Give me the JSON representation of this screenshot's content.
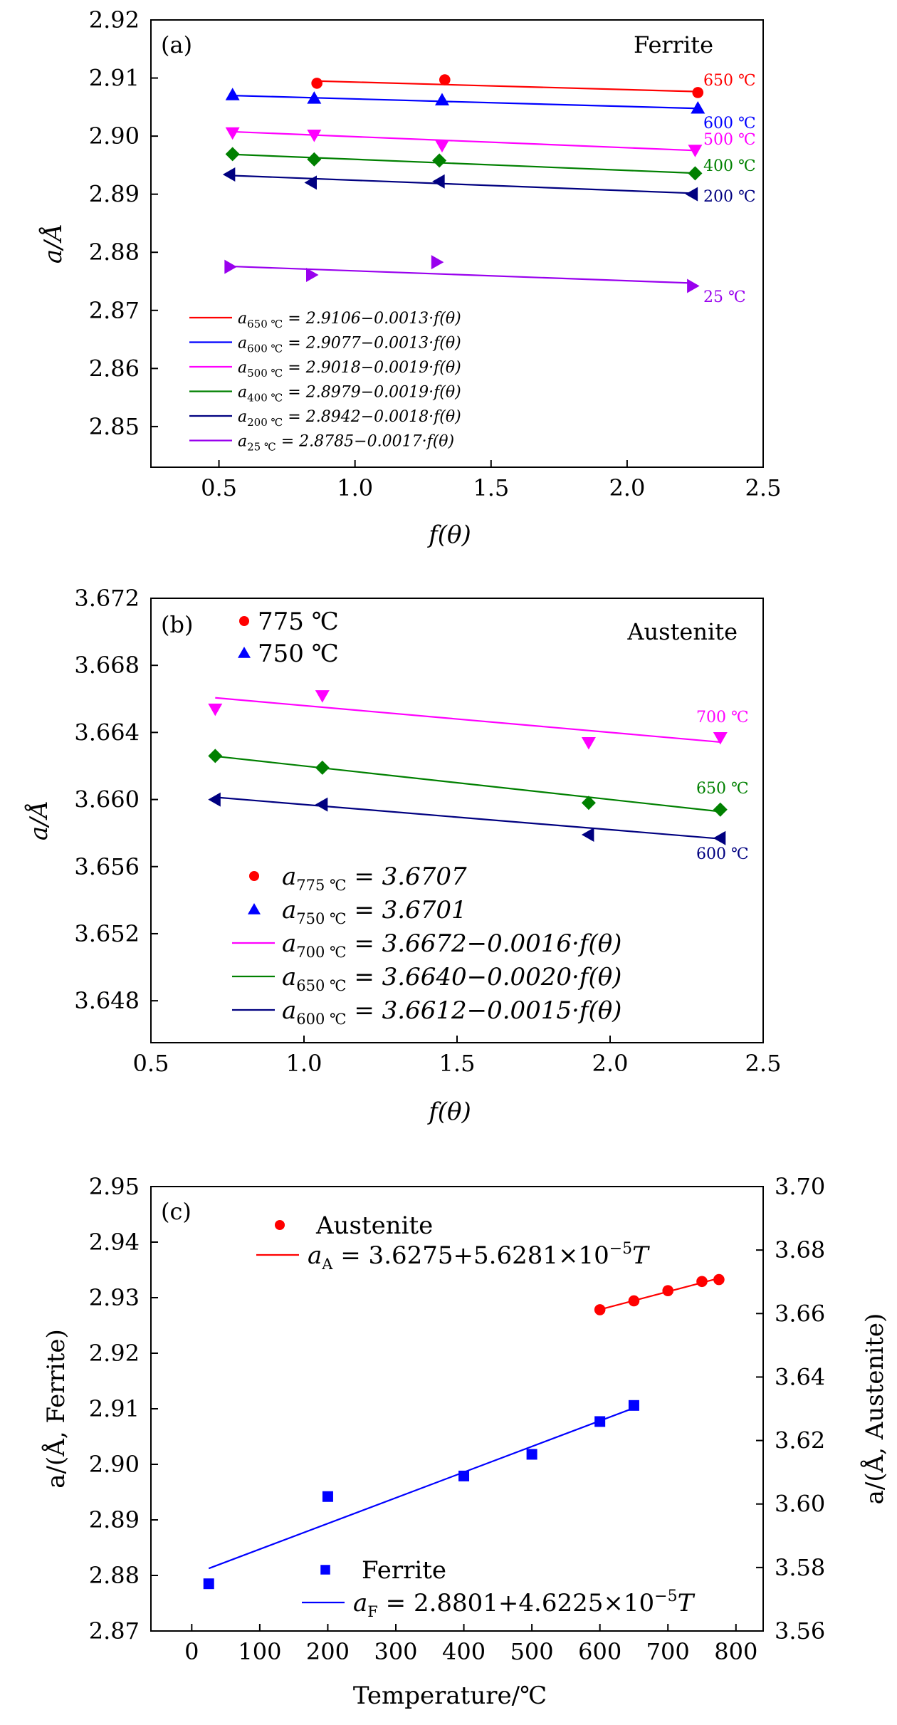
{
  "colors": {
    "red": "#ff0000",
    "blue": "#0000ff",
    "magenta": "#ff00ff",
    "green": "#008000",
    "navy": "#000080",
    "purple": "#9900ee"
  },
  "chart_data": [
    {
      "panel": "(a)",
      "type": "scatter",
      "annotation": "Ferrite",
      "xlabel": "f(θ)",
      "ylabel": "a/Å",
      "xlim": [
        0.25,
        2.5
      ],
      "ylim": [
        2.843,
        2.92
      ],
      "xticks": [
        "0.5",
        "1.0",
        "1.5",
        "2.0",
        "2.5"
      ],
      "yticks": [
        "2.85",
        "2.86",
        "2.87",
        "2.88",
        "2.89",
        "2.90",
        "2.91",
        "2.92"
      ],
      "series": [
        {
          "name": "650 ℃",
          "color": "#ff0000",
          "marker": "circle",
          "x": [
            0.86,
            1.33,
            2.26
          ],
          "y": [
            2.9091,
            2.9097,
            2.9075
          ],
          "fit": [
            2.9106,
            -0.0013
          ],
          "fit_x": [
            0.86,
            2.26
          ],
          "equation": "a650 ℃ = 2.9106−0.0013·f(θ)"
        },
        {
          "name": "600 ℃",
          "color": "#0000ff",
          "marker": "triangle-up",
          "x": [
            0.55,
            0.85,
            1.32,
            2.26
          ],
          "y": [
            2.9071,
            2.9065,
            2.9062,
            2.9048
          ],
          "fit": [
            2.9077,
            -0.0013
          ],
          "fit_x": [
            0.55,
            2.26
          ],
          "equation": "a600 ℃ = 2.9077−0.0013·f(θ)"
        },
        {
          "name": "500 ℃",
          "color": "#ff00ff",
          "marker": "triangle-down",
          "x": [
            0.55,
            0.85,
            1.32,
            2.25
          ],
          "y": [
            2.9006,
            2.9002,
            2.8984,
            2.8976
          ],
          "fit": [
            2.9018,
            -0.0019
          ],
          "fit_x": [
            0.55,
            2.25
          ],
          "equation": "a500 ℃ = 2.9018−0.0019·f(θ)"
        },
        {
          "name": "400 ℃",
          "color": "#008000",
          "marker": "diamond",
          "x": [
            0.55,
            0.85,
            1.31,
            2.25
          ],
          "y": [
            2.8969,
            2.896,
            2.8958,
            2.8936
          ],
          "fit": [
            2.8979,
            -0.0019
          ],
          "fit_x": [
            0.55,
            2.25
          ],
          "equation": "a400 ℃ = 2.8979−0.0019·f(θ)"
        },
        {
          "name": "200 ℃",
          "color": "#000080",
          "marker": "triangle-left",
          "x": [
            0.54,
            0.84,
            1.31,
            2.24
          ],
          "y": [
            2.8934,
            2.892,
            2.8922,
            2.89
          ],
          "fit": [
            2.8942,
            -0.0018
          ],
          "fit_x": [
            0.54,
            2.24
          ],
          "equation": "a200 ℃ = 2.8942−0.0018·f(θ)"
        },
        {
          "name": "25 ℃",
          "color": "#9900ee",
          "marker": "triangle-right",
          "x": [
            0.54,
            0.84,
            1.3,
            2.24
          ],
          "y": [
            2.8775,
            2.8761,
            2.8783,
            2.8742
          ],
          "fit": [
            2.8785,
            -0.0017
          ],
          "fit_x": [
            0.54,
            2.24
          ],
          "equation": "a25 ℃ = 2.8785−0.0017·f(θ)"
        }
      ],
      "legend": [
        {
          "sub": "650 ℃",
          "expr": "= 2.9106−0.0013·f(θ)",
          "color": "#ff0000"
        },
        {
          "sub": "600 ℃",
          "expr": "= 2.9077−0.0013·f(θ)",
          "color": "#0000ff"
        },
        {
          "sub": "500 ℃",
          "expr": "= 2.9018−0.0019·f(θ)",
          "color": "#ff00ff"
        },
        {
          "sub": "400 ℃",
          "expr": "= 2.8979−0.0019·f(θ)",
          "color": "#008000"
        },
        {
          "sub": "200 ℃",
          "expr": "= 2.8942−0.0018·f(θ)",
          "color": "#000080"
        },
        {
          "sub": "25 ℃",
          "expr": "= 2.8785−0.0017·f(θ)",
          "color": "#9900ee"
        }
      ]
    },
    {
      "panel": "(b)",
      "type": "scatter",
      "annotation": "Austenite",
      "xlabel": "f(θ)",
      "ylabel": "a/Å",
      "xlim": [
        0.5,
        2.5
      ],
      "ylim": [
        3.6455,
        3.672
      ],
      "xticks": [
        "0.5",
        "1.0",
        "1.5",
        "2.0",
        "2.5"
      ],
      "yticks": [
        "3.648",
        "3.652",
        "3.656",
        "3.660",
        "3.664",
        "3.668",
        "3.672"
      ],
      "series": [
        {
          "name": "700 ℃",
          "color": "#ff00ff",
          "marker": "triangle-down",
          "x": [
            0.71,
            1.06,
            1.93,
            2.36
          ],
          "y": [
            3.6654,
            3.6662,
            3.6634,
            3.6637
          ],
          "fit": [
            3.6672,
            -0.0016
          ],
          "fit_x": [
            0.71,
            2.36
          ],
          "equation": "a700 ℃ = 3.6672−0.0016·f(θ)"
        },
        {
          "name": "650 ℃",
          "color": "#008000",
          "marker": "diamond",
          "x": [
            0.71,
            1.06,
            1.93,
            2.36
          ],
          "y": [
            3.6626,
            3.6619,
            3.6598,
            3.6594
          ],
          "fit": [
            3.664,
            -0.002
          ],
          "fit_x": [
            0.71,
            2.36
          ],
          "equation": "a650 ℃ = 3.6640−0.0020·f(θ)"
        },
        {
          "name": "600 ℃",
          "color": "#000080",
          "marker": "triangle-left",
          "x": [
            0.71,
            1.06,
            1.93,
            2.36
          ],
          "y": [
            3.66,
            3.6597,
            3.6579,
            3.6577
          ],
          "fit": [
            3.6612,
            -0.0015
          ],
          "fit_x": [
            0.71,
            2.36
          ],
          "equation": "a600 ℃ = 3.6612−0.0015·f(θ)"
        }
      ],
      "top_legend": [
        {
          "label": "775 ℃",
          "color": "#ff0000",
          "marker": "circle"
        },
        {
          "label": "750 ℃",
          "color": "#0000ff",
          "marker": "triangle-up"
        }
      ],
      "legend": [
        {
          "kind": "marker",
          "marker": "circle",
          "color": "#ff0000",
          "sub": "775 ℃",
          "expr": "= 3.6707"
        },
        {
          "kind": "marker",
          "marker": "triangle-up",
          "color": "#0000ff",
          "sub": "750 ℃",
          "expr": "= 3.6701"
        },
        {
          "kind": "line",
          "color": "#ff00ff",
          "sub": "700 ℃",
          "expr": "= 3.6672−0.0016·f(θ)"
        },
        {
          "kind": "line",
          "color": "#008000",
          "sub": "650 ℃",
          "expr": "= 3.6640−0.0020·f(θ)"
        },
        {
          "kind": "line",
          "color": "#000080",
          "sub": "600 ℃",
          "expr": "= 3.6612−0.0015·f(θ)"
        }
      ]
    },
    {
      "panel": "(c)",
      "type": "scatter",
      "xlabel": "Temperature/℃",
      "ylabel_left": "a/(Å, Ferrite)",
      "ylabel_right": "a/(Å, Austenite)",
      "xlim": [
        -60,
        840
      ],
      "ylim_left": [
        2.87,
        2.95
      ],
      "ylim_right": [
        3.56,
        3.7
      ],
      "xticks": [
        "0",
        "100",
        "200",
        "300",
        "400",
        "500",
        "600",
        "700",
        "800"
      ],
      "yticks_left": [
        "2.87",
        "2.88",
        "2.89",
        "2.90",
        "2.91",
        "2.92",
        "2.93",
        "2.94",
        "2.95"
      ],
      "yticks_right": [
        "3.56",
        "3.58",
        "3.60",
        "3.62",
        "3.64",
        "3.66",
        "3.68",
        "3.70"
      ],
      "series": [
        {
          "name": "Austenite",
          "axis": "right",
          "color": "#ff0000",
          "marker": "circle",
          "x": [
            600,
            650,
            700,
            750,
            775
          ],
          "y": [
            3.6612,
            3.664,
            3.6672,
            3.6701,
            3.6707
          ],
          "fit": [
            3.6275,
            5.6281e-05
          ],
          "fit_x": [
            600,
            775
          ],
          "equation": "aA = 3.6275+5.6281×10−5T"
        },
        {
          "name": "Ferrite",
          "axis": "left",
          "color": "#0000ff",
          "marker": "square",
          "x": [
            25,
            200,
            400,
            500,
            600,
            650
          ],
          "y": [
            2.8785,
            2.8942,
            2.8979,
            2.9018,
            2.9077,
            2.9106
          ],
          "fit": [
            2.8801,
            4.6225e-05
          ],
          "fit_x": [
            25,
            650
          ],
          "equation": "aF = 2.8801+4.6225×10−5T"
        }
      ],
      "legend_austenite": {
        "label": "Austenite",
        "sub": "A",
        "expr": "= 3.6275+5.6281×10",
        "exp": "−5",
        "tail": "T"
      },
      "legend_ferrite": {
        "label": "Ferrite",
        "sub": "F",
        "expr": "= 2.8801+4.6225×10",
        "exp": "−5",
        "tail": "T"
      }
    }
  ]
}
